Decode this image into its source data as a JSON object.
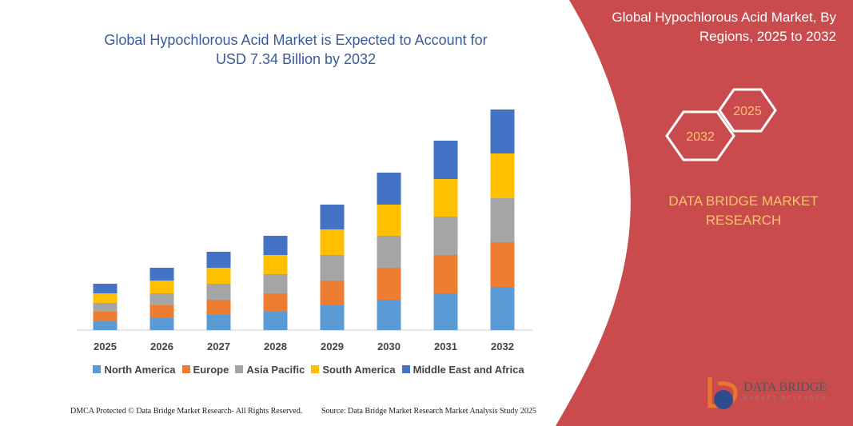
{
  "chart_data": {
    "type": "stacked_bar",
    "title": "Global Hypochlorous Acid Market is Expected to Account for USD 7.34 Billion by 2032",
    "categories": [
      "2025",
      "2026",
      "2027",
      "2028",
      "2029",
      "2030",
      "2031",
      "2032"
    ],
    "series": [
      {
        "name": "North America",
        "color": "#5b9bd5",
        "values": [
          11,
          15,
          19,
          23,
          31,
          38,
          46,
          54
        ]
      },
      {
        "name": "Europe",
        "color": "#ed7d31",
        "values": [
          12,
          16,
          19,
          23,
          31,
          40,
          48,
          56
        ]
      },
      {
        "name": "Asia Pacific",
        "color": "#a5a5a5",
        "values": [
          11,
          15,
          20,
          24,
          32,
          40,
          48,
          55
        ]
      },
      {
        "name": "South America",
        "color": "#ffc000",
        "values": [
          12,
          16,
          20,
          24,
          32,
          39,
          47,
          56
        ]
      },
      {
        "name": "Middle East and Africa",
        "color": "#4472c4",
        "values": [
          12,
          16,
          20,
          24,
          31,
          40,
          48,
          55
        ]
      }
    ],
    "ylim": [
      0,
      300
    ],
    "legend": "bottom",
    "grid": false
  },
  "panel": {
    "title": "Global Hypochlorous Acid Market, By Regions, 2025 to 2032",
    "hex_labels": [
      "2025",
      "2032"
    ],
    "brand": "DATA BRIDGE MARKET RESEARCH"
  },
  "logo": {
    "name": "DATA BRIDGE",
    "tagline": "MARKET RESEARCH"
  },
  "footer": {
    "left": "DMCA Protected © Data Bridge Market Research- All Rights Reserved.",
    "right": "Source: Data Bridge Market Research Market Analysis Study 2025"
  }
}
